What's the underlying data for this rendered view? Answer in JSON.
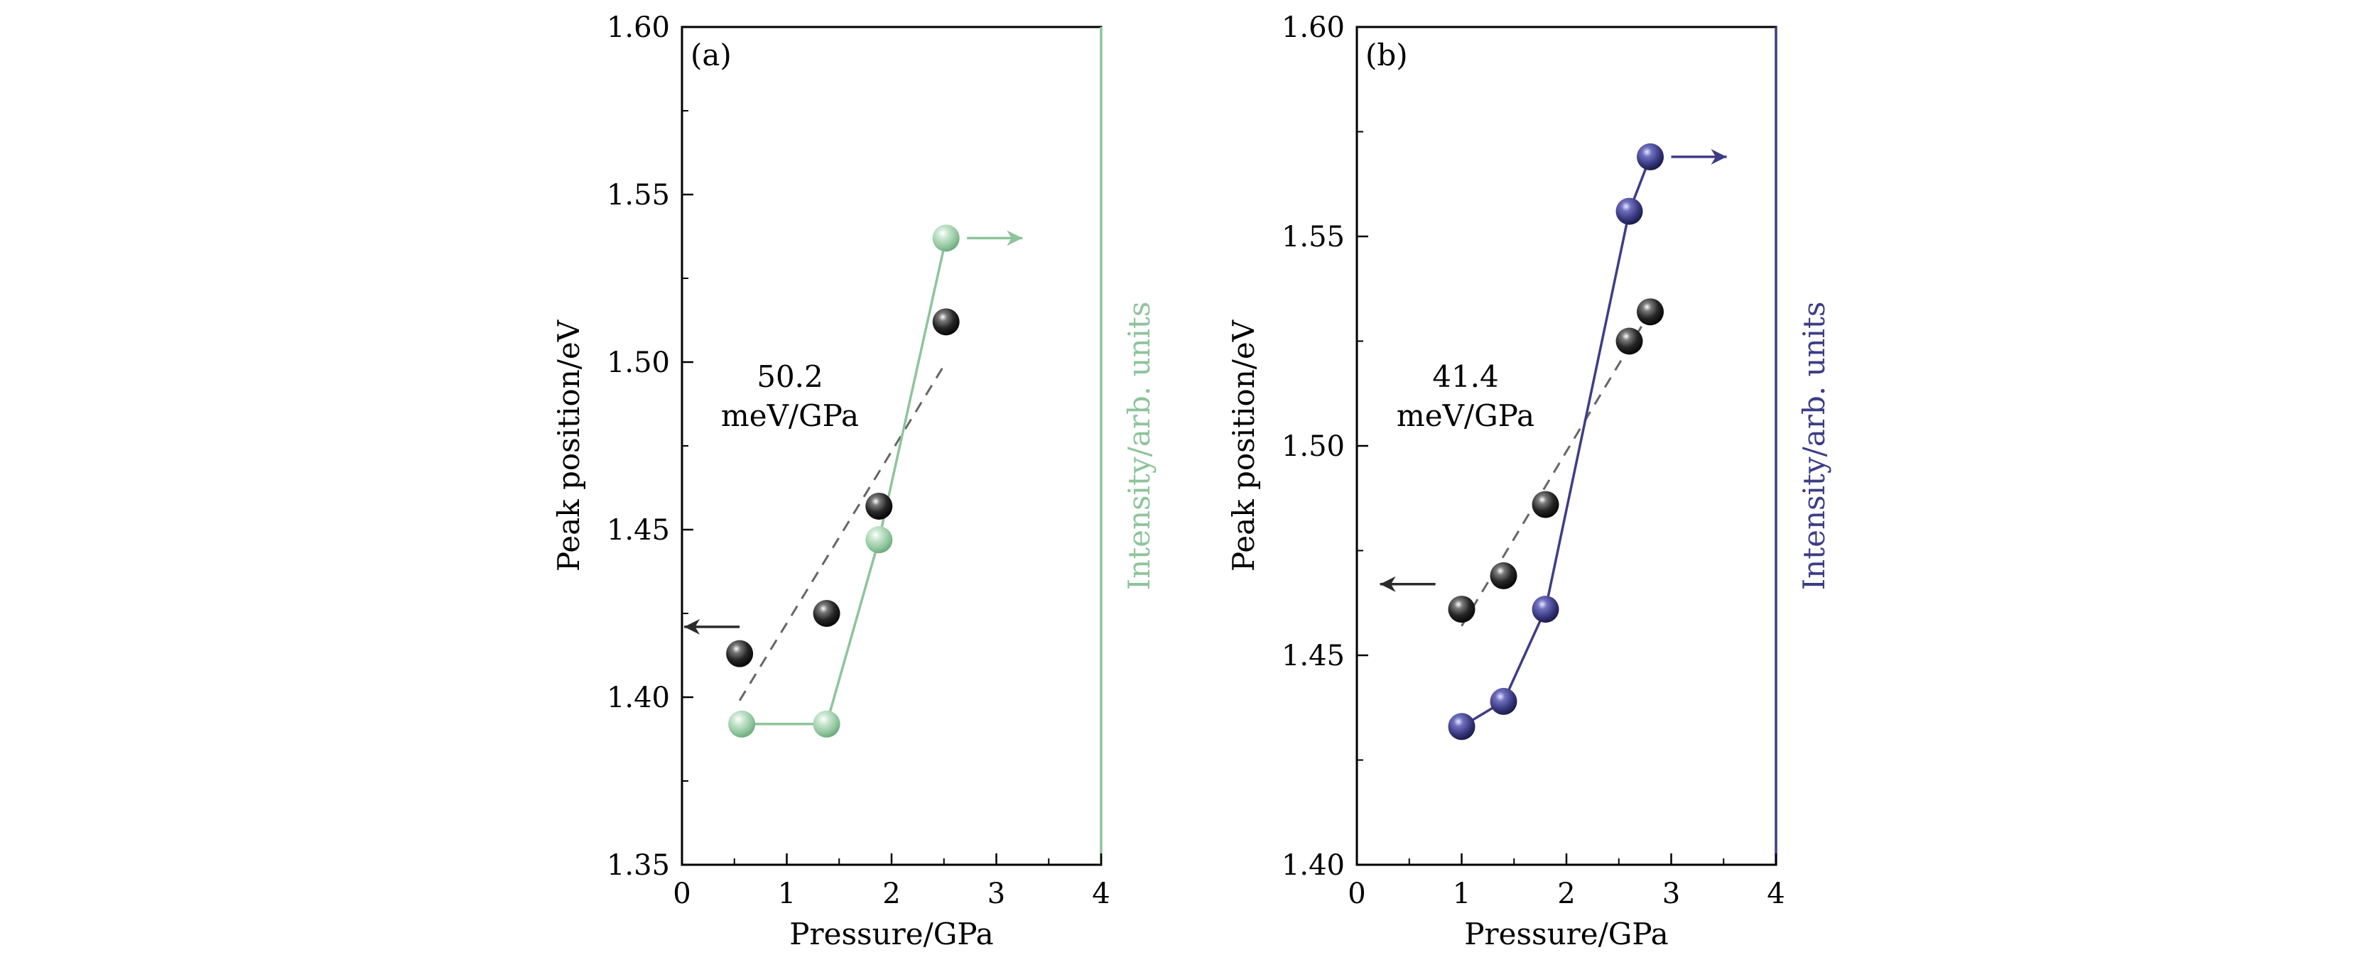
{
  "chart_data": [
    {
      "type": "scatter",
      "panel_label": "(a)",
      "xlabel": "Pressure/GPa",
      "ylabel": "Peak position/eV",
      "y2label": "Intensity/arb. units",
      "xlim": [
        0,
        4
      ],
      "ylim": [
        1.35,
        1.6
      ],
      "xticks": [
        0,
        1,
        2,
        3,
        4
      ],
      "yticks": [
        1.35,
        1.4,
        1.45,
        1.5,
        1.55,
        1.6
      ],
      "xtick_labels": [
        "0",
        "1",
        "2",
        "3",
        "4"
      ],
      "ytick_labels": [
        "1.35",
        "1.40",
        "1.45",
        "1.50",
        "1.55",
        "1.60"
      ],
      "annotation_value": "50.2",
      "annotation_unit": "meV/GPa",
      "colors": {
        "peak": "#2b2b2b",
        "intensity": "#8ec49b",
        "fit": "#666666"
      },
      "series": [
        {
          "name": "Peak position",
          "axis": "left",
          "style": "markers",
          "x": [
            0.55,
            1.38,
            1.88,
            2.52
          ],
          "y": [
            1.413,
            1.425,
            1.457,
            1.512
          ]
        },
        {
          "name": "Intensity",
          "axis": "right",
          "style": "line+markers",
          "x": [
            0.57,
            1.38,
            1.88,
            2.52
          ],
          "y": [
            1.392,
            1.392,
            1.447,
            1.537
          ]
        },
        {
          "name": "Linear fit",
          "style": "dashed",
          "x": [
            0.55,
            2.52
          ],
          "y": [
            1.399,
            1.5
          ]
        }
      ],
      "arrows": [
        {
          "direction": "left",
          "x": 0.55,
          "y": 1.421,
          "color": "#2b2b2b"
        },
        {
          "direction": "right",
          "x": 2.72,
          "y": 1.537,
          "color": "#8ec49b"
        }
      ]
    },
    {
      "type": "scatter",
      "panel_label": "(b)",
      "xlabel": "Pressure/GPa",
      "ylabel": "Peak position/eV",
      "y2label": "Intensity/arb. units",
      "xlim": [
        0,
        4
      ],
      "ylim": [
        1.4,
        1.6
      ],
      "xticks": [
        0,
        1,
        2,
        3,
        4
      ],
      "yticks": [
        1.4,
        1.45,
        1.5,
        1.55,
        1.6
      ],
      "xtick_labels": [
        "0",
        "1",
        "2",
        "3",
        "4"
      ],
      "ytick_labels": [
        "1.40",
        "1.45",
        "1.50",
        "1.55",
        "1.60"
      ],
      "annotation_value": "41.4",
      "annotation_unit": "meV/GPa",
      "colors": {
        "peak": "#2b2b2b",
        "intensity": "#3d3d85",
        "fit": "#666666"
      },
      "series": [
        {
          "name": "Peak position",
          "axis": "left",
          "style": "markers",
          "x": [
            1.0,
            1.4,
            1.8,
            2.6,
            2.8
          ],
          "y": [
            1.461,
            1.469,
            1.486,
            1.525,
            1.532
          ]
        },
        {
          "name": "Intensity",
          "axis": "right",
          "style": "line+markers",
          "x": [
            1.0,
            1.4,
            1.8,
            2.6,
            2.8
          ],
          "y": [
            1.433,
            1.439,
            1.461,
            1.556,
            1.569
          ]
        },
        {
          "name": "Linear fit",
          "style": "dashed",
          "x": [
            1.0,
            2.8
          ],
          "y": [
            1.457,
            1.532
          ]
        }
      ],
      "arrows": [
        {
          "direction": "left",
          "x": 0.75,
          "y": 1.467,
          "color": "#2b2b2b"
        },
        {
          "direction": "right",
          "x": 3.0,
          "y": 1.569,
          "color": "#3d3d85"
        }
      ]
    }
  ]
}
